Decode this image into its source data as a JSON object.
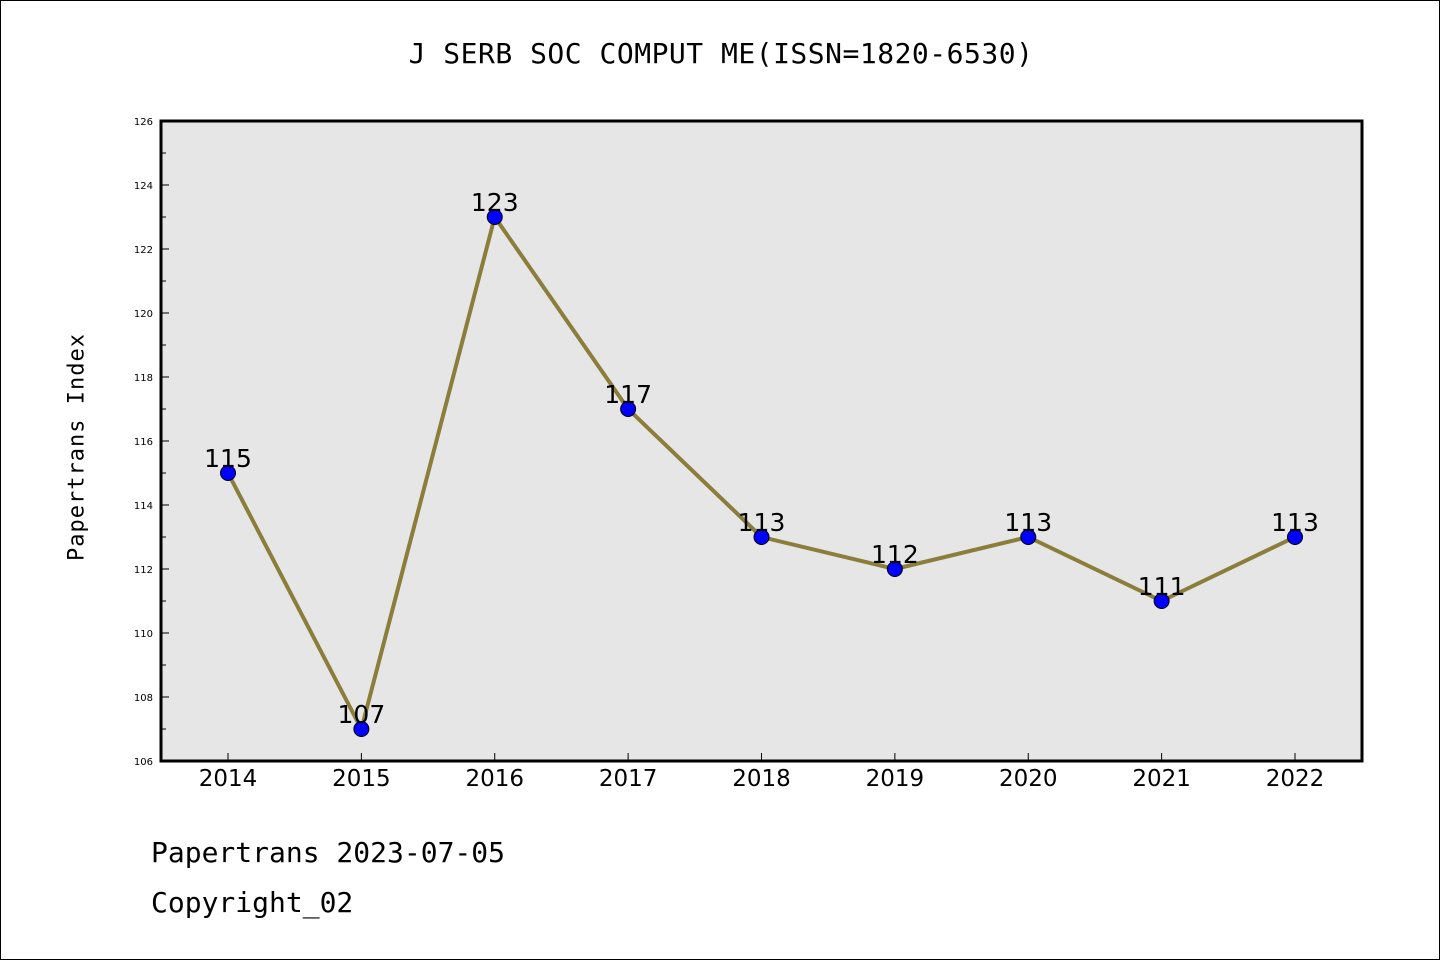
{
  "title": "J SERB SOC COMPUT ME(ISSN=1820-6530)",
  "ylabel": "Papertrans Index",
  "footer": {
    "line1": "Papertrans 2023-07-05",
    "line2": "Copyright_02"
  },
  "colors": {
    "plot_background": "#e6e6e6",
    "line": "#8b7d3a",
    "marker": "#0000ff"
  },
  "chart_data": {
    "type": "line",
    "title": "J SERB SOC COMPUT ME(ISSN=1820-6530)",
    "xlabel": "",
    "ylabel": "Papertrans Index",
    "categories": [
      "2014",
      "2015",
      "2016",
      "2017",
      "2018",
      "2019",
      "2020",
      "2021",
      "2022"
    ],
    "values": [
      115,
      107,
      123,
      117,
      113,
      112,
      113,
      111,
      113
    ],
    "data_labels": [
      "115",
      "107",
      "123",
      "117",
      "113",
      "112",
      "113",
      "111",
      "113"
    ],
    "ylim": [
      106,
      126
    ],
    "yticks": [
      106,
      108,
      110,
      112,
      114,
      116,
      118,
      120,
      122,
      124,
      126
    ],
    "grid": false,
    "legend": false
  }
}
